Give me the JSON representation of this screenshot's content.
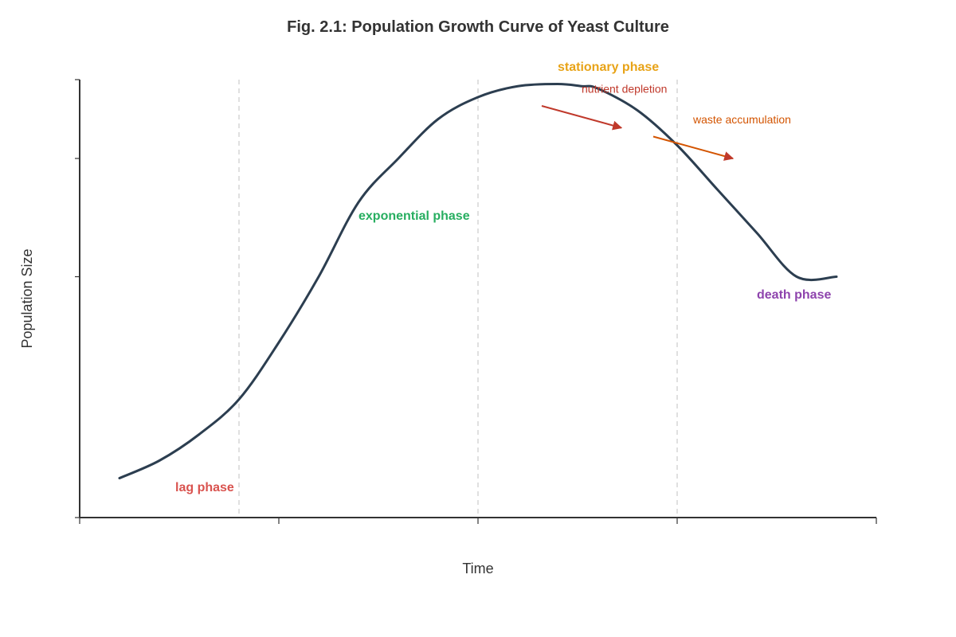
{
  "chart_data": {
    "type": "line",
    "title": "Fig. 2.1: Population Growth Curve of Yeast Culture",
    "xlabel": "Time",
    "ylabel": "Population Size",
    "xlim": [
      0,
      100
    ],
    "ylim": [
      0,
      100
    ],
    "grid": "vertical phase boundaries (dashed)",
    "series": [
      {
        "x": [
          5,
          10,
          15,
          20,
          25,
          30,
          35,
          40,
          45,
          50,
          55,
          60,
          63,
          65,
          70,
          75,
          80,
          85,
          90,
          95
        ],
        "y": [
          9,
          13,
          19,
          27,
          40,
          55,
          72,
          82,
          91,
          96,
          98.5,
          99,
          98.5,
          98,
          93,
          85,
          75,
          65,
          55,
          55
        ]
      }
    ],
    "colors": {
      "curve": "#2c3e50",
      "axis": "#333333",
      "gridline": "#cccccc",
      "lag": "#d9534f",
      "exponential": "#27ae60",
      "stationary": "#e8a317",
      "death": "#8e44ad",
      "nutrient": "#c0392b",
      "waste": "#d35400"
    },
    "phase_boundaries": [
      20,
      50,
      75
    ],
    "annotations": [
      {
        "key": "lag",
        "text": "lag phase",
        "x": 12,
        "y": 6,
        "style": "phase"
      },
      {
        "key": "exponential",
        "text": "exponential phase",
        "x": 35,
        "y": 68,
        "style": "phase"
      },
      {
        "key": "stationary",
        "text": "stationary phase",
        "x": 60,
        "y": 102,
        "style": "phase"
      },
      {
        "key": "death",
        "text": "death phase",
        "x": 85,
        "y": 50,
        "style": "phase"
      },
      {
        "key": "nutrient",
        "text": "nutrient depletion",
        "x": 63,
        "y": 97,
        "style": "note"
      },
      {
        "key": "waste",
        "text": "waste accumulation",
        "x": 77,
        "y": 90,
        "style": "note"
      }
    ],
    "arrows": [
      {
        "key": "nutrient",
        "from": [
          58,
          94
        ],
        "to": [
          68,
          89
        ]
      },
      {
        "key": "waste",
        "from": [
          72,
          87
        ],
        "to": [
          82,
          82
        ]
      }
    ]
  }
}
